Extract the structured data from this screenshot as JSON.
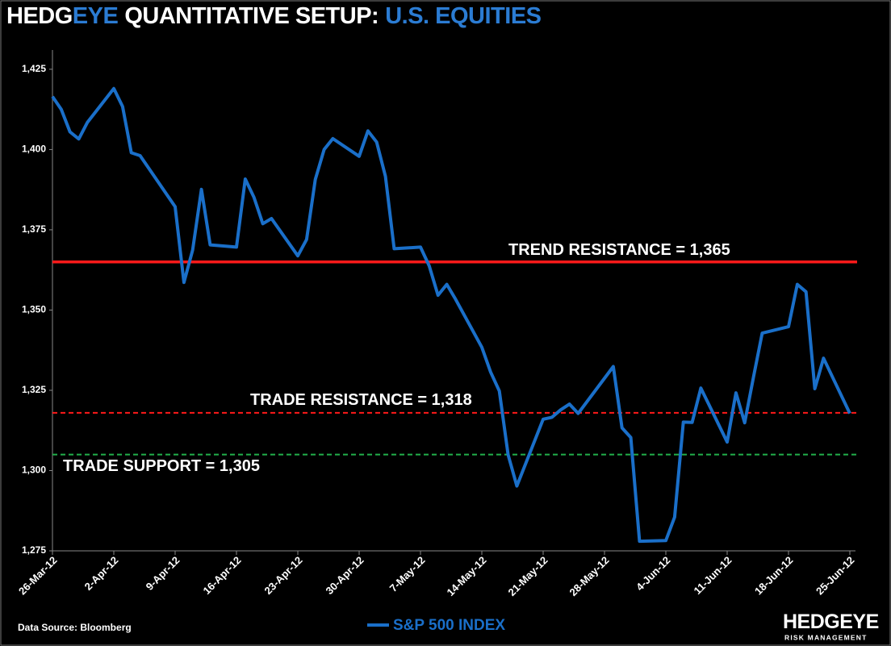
{
  "chart_data": {
    "type": "line",
    "title_parts": [
      {
        "text": "HEDG",
        "color": "#ffffff"
      },
      {
        "text": "EYE",
        "color": "#2b7cd3"
      },
      {
        "text": "QUANTITATIVE SETUP:",
        "color": "#ffffff"
      },
      {
        "text": "U.S. EQUITIES",
        "color": "#2b7cd3"
      }
    ],
    "x": [
      "26-Mar-12",
      "27-Mar-12",
      "28-Mar-12",
      "29-Mar-12",
      "30-Mar-12",
      "2-Apr-12",
      "3-Apr-12",
      "4-Apr-12",
      "5-Apr-12",
      "9-Apr-12",
      "10-Apr-12",
      "11-Apr-12",
      "12-Apr-12",
      "13-Apr-12",
      "16-Apr-12",
      "17-Apr-12",
      "18-Apr-12",
      "19-Apr-12",
      "20-Apr-12",
      "23-Apr-12",
      "24-Apr-12",
      "25-Apr-12",
      "26-Apr-12",
      "27-Apr-12",
      "30-Apr-12",
      "1-May-12",
      "2-May-12",
      "3-May-12",
      "4-May-12",
      "7-May-12",
      "8-May-12",
      "9-May-12",
      "10-May-12",
      "11-May-12",
      "14-May-12",
      "15-May-12",
      "16-May-12",
      "17-May-12",
      "18-May-12",
      "21-May-12",
      "22-May-12",
      "23-May-12",
      "24-May-12",
      "25-May-12",
      "29-May-12",
      "30-May-12",
      "31-May-12",
      "1-Jun-12",
      "4-Jun-12",
      "5-Jun-12",
      "6-Jun-12",
      "7-Jun-12",
      "8-Jun-12",
      "11-Jun-12",
      "12-Jun-12",
      "13-Jun-12",
      "14-Jun-12",
      "15-Jun-12",
      "18-Jun-12",
      "19-Jun-12",
      "20-Jun-12",
      "21-Jun-12",
      "22-Jun-12",
      "25-Jun-12"
    ],
    "series": [
      {
        "name": "S&P 500 INDEX",
        "color": "#1a6fc9",
        "values": [
          1416.5,
          1412.5,
          1405.5,
          1403.3,
          1408.5,
          1419.0,
          1413.4,
          1399.0,
          1398.1,
          1382.2,
          1358.6,
          1368.7,
          1387.6,
          1370.3,
          1369.6,
          1390.8,
          1385.1,
          1376.9,
          1378.5,
          1366.9,
          1372.0,
          1390.7,
          1400.0,
          1403.4,
          1397.9,
          1405.8,
          1402.3,
          1391.6,
          1369.1,
          1369.6,
          1363.7,
          1354.6,
          1358.0,
          1353.4,
          1338.4,
          1330.7,
          1324.8,
          1304.9,
          1295.2,
          1316.0,
          1316.6,
          1318.9,
          1320.7,
          1317.8,
          1332.4,
          1313.3,
          1310.3,
          1278.0,
          1278.2,
          1285.5,
          1315.1,
          1315.0,
          1325.7,
          1308.9,
          1324.2,
          1314.9,
          1329.1,
          1342.8,
          1344.8,
          1358.0,
          1355.7,
          1325.5,
          1335.0,
          1317.8
        ]
      }
    ],
    "xlim": [
      "26-Mar-12",
      "25-Jun-12"
    ],
    "xticks": [
      "26-Mar-12",
      "2-Apr-12",
      "9-Apr-12",
      "16-Apr-12",
      "23-Apr-12",
      "30-Apr-12",
      "7-May-12",
      "14-May-12",
      "21-May-12",
      "28-May-12",
      "4-Jun-12",
      "11-Jun-12",
      "18-Jun-12",
      "25-Jun-12"
    ],
    "ylim": [
      1275,
      1431
    ],
    "yticks": [
      {
        "value": 1275,
        "label": "1,275"
      },
      {
        "value": 1300,
        "label": "1,300"
      },
      {
        "value": 1325,
        "label": "1,325"
      },
      {
        "value": 1350,
        "label": "1,350"
      },
      {
        "value": 1375,
        "label": "1,375"
      },
      {
        "value": 1400,
        "label": "1,400"
      },
      {
        "value": 1425,
        "label": "1,425"
      }
    ],
    "reference_lines": [
      {
        "label": "TREND RESISTANCE = 1,365",
        "value": 1365,
        "color": "#ff1a1a",
        "dashed": false
      },
      {
        "label": "TRADE RESISTANCE = 1,318",
        "value": 1318,
        "color": "#ff1a1a",
        "dashed": true
      },
      {
        "label": "TRADE SUPPORT = 1,305",
        "value": 1305,
        "color": "#22b04b",
        "dashed": true
      }
    ],
    "source": "Data Source: Bloomberg",
    "logo": {
      "main_a": "HEDG",
      "main_b": "EYE",
      "sub": "RISK MANAGEMENT"
    }
  }
}
